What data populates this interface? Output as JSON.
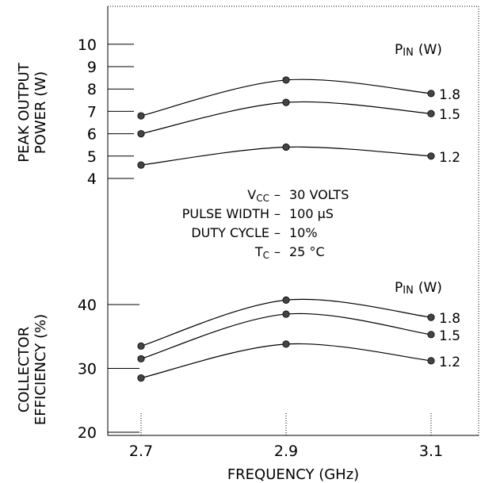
{
  "chart_data": [
    {
      "type": "line",
      "name_key": "power",
      "ylabel_lines": [
        "PEAK OUTPUT",
        "POWER (W)"
      ],
      "yticks": [
        4,
        5,
        6,
        7,
        8,
        9,
        10
      ],
      "x": [
        2.7,
        2.9,
        3.1
      ],
      "legend_title_main": "P",
      "legend_title_sub": "IN",
      "legend_title_unit": "(W)",
      "series": [
        {
          "name": "1.8",
          "values": [
            6.8,
            8.4,
            7.8
          ]
        },
        {
          "name": "1.5",
          "values": [
            6.0,
            7.4,
            6.9
          ]
        },
        {
          "name": "1.2",
          "values": [
            4.6,
            5.4,
            5.0
          ]
        }
      ]
    },
    {
      "type": "line",
      "name_key": "efficiency",
      "ylabel_lines": [
        "COLLECTOR",
        "EFFICIENCY (%)"
      ],
      "yticks": [
        20,
        30,
        40
      ],
      "x": [
        2.7,
        2.9,
        3.1
      ],
      "legend_title_main": "P",
      "legend_title_sub": "IN",
      "legend_title_unit": "(W)",
      "series": [
        {
          "name": "1.8",
          "values": [
            33.5,
            40.7,
            38.0
          ]
        },
        {
          "name": "1.5",
          "values": [
            31.5,
            38.5,
            35.3
          ]
        },
        {
          "name": "1.2",
          "values": [
            28.5,
            33.8,
            31.2
          ]
        }
      ]
    }
  ],
  "xaxis": {
    "label": "FREQUENCY (GHz)",
    "ticks": [
      "2.7",
      "2.9",
      "3.1"
    ]
  },
  "conditions": [
    {
      "name": "V",
      "sub": "CC",
      "value": "30 VOLTS"
    },
    {
      "name": "PULSE WIDTH",
      "sub": "",
      "value": "100 μS"
    },
    {
      "name": "DUTY CYCLE",
      "sub": "",
      "value": "10%"
    },
    {
      "name": "T",
      "sub": "C",
      "value": "25 °C"
    }
  ],
  "conditions_dash": "–"
}
